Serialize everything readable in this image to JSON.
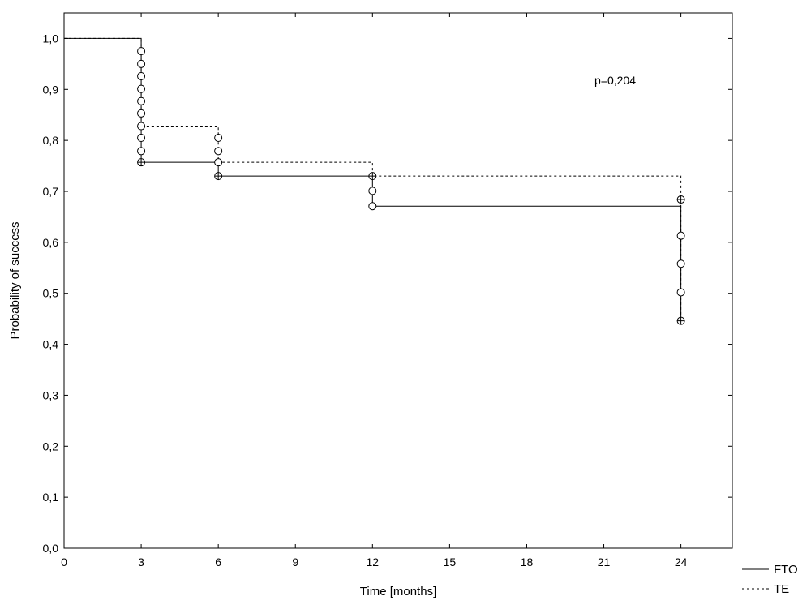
{
  "chart_data": {
    "type": "line",
    "subtype": "kaplan-meier step",
    "xlabel": "Time [months]",
    "ylabel": "Probability of success",
    "xlim": [
      0,
      26
    ],
    "ylim": [
      0,
      1.05
    ],
    "x_ticks": [
      0,
      3,
      6,
      9,
      12,
      15,
      18,
      21,
      24
    ],
    "x_tick_labels": [
      "0",
      "3",
      "6",
      "9",
      "12",
      "15",
      "18",
      "21",
      "24"
    ],
    "y_ticks": [
      0,
      0.1,
      0.2,
      0.3,
      0.4,
      0.5,
      0.6,
      0.7,
      0.8,
      0.9,
      1.0
    ],
    "y_tick_labels": [
      "0,0",
      "0,1",
      "0,2",
      "0,3",
      "0,4",
      "0,5",
      "0,6",
      "0,7",
      "0,8",
      "0,9",
      "1,0"
    ],
    "annotation": "p=0,204",
    "grid": false,
    "legend_position": "bottom-right outside",
    "series": [
      {
        "name": "FTO",
        "line_style": "solid",
        "color": "#000000",
        "steps": [
          {
            "x": 0,
            "y": 1.0
          },
          {
            "x": 3,
            "y": 0.757
          },
          {
            "x": 6,
            "y": 0.73
          },
          {
            "x": 12,
            "y": 0.671
          },
          {
            "x": 24,
            "y": 0.446
          }
        ],
        "events": [
          {
            "x": 3,
            "y": 0.757
          },
          {
            "x": 6,
            "y": 0.73
          },
          {
            "x": 12,
            "y": 0.671
          },
          {
            "x": 24,
            "y": 0.446
          }
        ]
      },
      {
        "name": "TE",
        "line_style": "dashed",
        "color": "#000000",
        "steps": [
          {
            "x": 0,
            "y": 1.0
          },
          {
            "x": 3,
            "y": 0.828
          },
          {
            "x": 6,
            "y": 0.757
          },
          {
            "x": 12,
            "y": 0.73
          },
          {
            "x": 24,
            "y": 0.684
          }
        ],
        "events": [
          {
            "x": 3,
            "y": 0.757
          },
          {
            "x": 6,
            "y": 0.73
          },
          {
            "x": 12,
            "y": 0.73
          },
          {
            "x": 24,
            "y": 0.684
          },
          {
            "x": 24,
            "y": 0.446
          }
        ]
      }
    ],
    "circle_markers": [
      {
        "x": 3,
        "y": 0.975
      },
      {
        "x": 3,
        "y": 0.95
      },
      {
        "x": 3,
        "y": 0.926
      },
      {
        "x": 3,
        "y": 0.901
      },
      {
        "x": 3,
        "y": 0.877
      },
      {
        "x": 3,
        "y": 0.853
      },
      {
        "x": 3,
        "y": 0.828
      },
      {
        "x": 3,
        "y": 0.805
      },
      {
        "x": 3,
        "y": 0.779
      },
      {
        "x": 3,
        "y": 0.757
      },
      {
        "x": 6,
        "y": 0.805
      },
      {
        "x": 6,
        "y": 0.779
      },
      {
        "x": 6,
        "y": 0.757
      },
      {
        "x": 6,
        "y": 0.73
      },
      {
        "x": 12,
        "y": 0.73
      },
      {
        "x": 12,
        "y": 0.701
      },
      {
        "x": 12,
        "y": 0.671
      },
      {
        "x": 24,
        "y": 0.684
      },
      {
        "x": 24,
        "y": 0.613
      },
      {
        "x": 24,
        "y": 0.558
      },
      {
        "x": 24,
        "y": 0.502
      },
      {
        "x": 24,
        "y": 0.446
      }
    ],
    "plus_markers": [
      {
        "x": 3,
        "y": 0.757
      },
      {
        "x": 6,
        "y": 0.73
      },
      {
        "x": 12,
        "y": 0.73
      },
      {
        "x": 24,
        "y": 0.684
      },
      {
        "x": 24,
        "y": 0.446
      }
    ]
  }
}
